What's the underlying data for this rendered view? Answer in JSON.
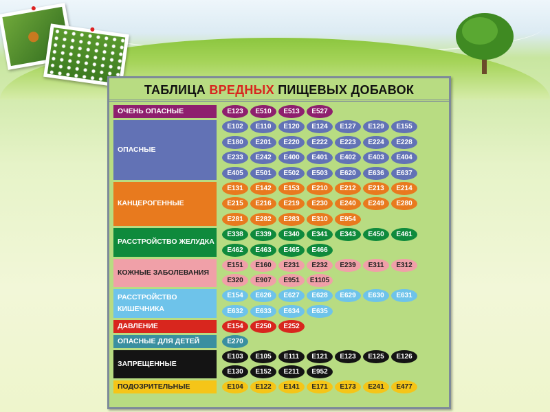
{
  "title": {
    "prefix": "ТАБЛИЦА",
    "highlight": "ВРЕДНЫХ",
    "suffix": "ПИЩЕВЫХ ДОБАВОК"
  },
  "categories": [
    {
      "label": "ОЧЕНЬ ОПАСНЫЕ",
      "color": "#8e1f6e",
      "text_color": "#ffffff",
      "codes": [
        "E123",
        "E510",
        "E513",
        "E527"
      ]
    },
    {
      "label": "ОПАСНЫЕ",
      "color": "#6272b5",
      "text_color": "#ffffff",
      "codes": [
        "E102",
        "E110",
        "E120",
        "E124",
        "E127",
        "E129",
        "E155",
        "E180",
        "E201",
        "E220",
        "E222",
        "E223",
        "E224",
        "E228",
        "E233",
        "E242",
        "E400",
        "E401",
        "E402",
        "E403",
        "E404",
        "E405",
        "E501",
        "E502",
        "E503",
        "E620",
        "E636",
        "E637"
      ]
    },
    {
      "label": "КАНЦЕРОГЕННЫЕ",
      "color": "#e87a1e",
      "text_color": "#ffffff",
      "codes": [
        "E131",
        "E142",
        "E153",
        "E210",
        "E212",
        "E213",
        "E214",
        "E215",
        "E216",
        "E219",
        "E230",
        "E240",
        "E249",
        "E280",
        "E281",
        "E282",
        "E283",
        "E310",
        "E954"
      ]
    },
    {
      "label": "РАССТРОЙСТВО ЖЕЛУДКА",
      "color": "#0f8a3c",
      "text_color": "#ffffff",
      "codes": [
        "E338",
        "E339",
        "E340",
        "E341",
        "E343",
        "E450",
        "E461",
        "E462",
        "E463",
        "E465",
        "E466"
      ]
    },
    {
      "label": "КОЖНЫЕ ЗАБОЛЕВАНИЯ",
      "color": "#f0a0a8",
      "text_color": "#222222",
      "codes": [
        "E151",
        "E160",
        "E231",
        "E232",
        "E239",
        "E311",
        "E312",
        "E320",
        "E907",
        "E951",
        "E1105"
      ]
    },
    {
      "label": "РАССТРОЙСТВО КИШЕЧНИКА",
      "color": "#6ec3ea",
      "text_color": "#ffffff",
      "codes": [
        "E154",
        "E626",
        "E627",
        "E628",
        "E629",
        "E630",
        "E631",
        "E632",
        "E633",
        "E634",
        "E635"
      ]
    },
    {
      "label": "ДАВЛЕНИЕ",
      "color": "#d8261e",
      "text_color": "#ffffff",
      "codes": [
        "E154",
        "E250",
        "E252"
      ]
    },
    {
      "label": "ОПАСНЫЕ ДЛЯ ДЕТЕЙ",
      "color": "#3a8fa0",
      "text_color": "#ffffff",
      "codes": [
        "E270"
      ]
    },
    {
      "label": "ЗАПРЕЩЕННЫЕ",
      "color": "#141414",
      "text_color": "#ffffff",
      "codes": [
        "E103",
        "E105",
        "E111",
        "E121",
        "E123",
        "E125",
        "E126",
        "E130",
        "E152",
        "E211",
        "E952"
      ]
    },
    {
      "label": "ПОДОЗРИТЕЛЬНЫЕ",
      "color": "#f5c518",
      "text_color": "#222222",
      "codes": [
        "E104",
        "E122",
        "E141",
        "E171",
        "E173",
        "E241",
        "E477"
      ]
    }
  ]
}
